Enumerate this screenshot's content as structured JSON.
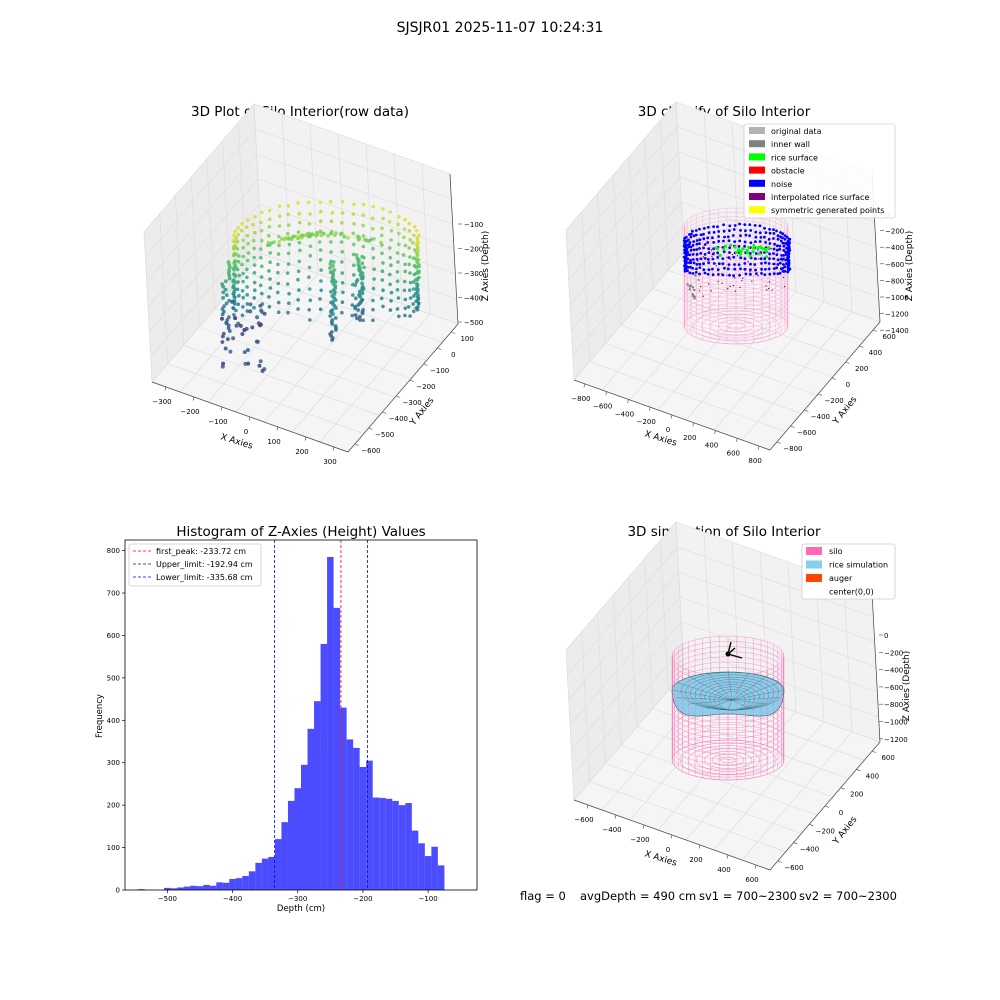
{
  "figure": {
    "suptitle": "SJSJR01 2025-11-07 10:24:31",
    "footer": {
      "flag": "flag = 0",
      "avg_depth": "avgDepth = 490 cm",
      "sv1": "sv1 = 700~2300",
      "sv2": "sv2 = 700~2300"
    }
  },
  "chart_data": [
    {
      "type": "scatter",
      "title": "3D Plot of Silo Interior(row data)",
      "xlabel": "X Axies",
      "ylabel": "Y Axies",
      "zlabel": "Z Axies (Depth)",
      "x_ticks": [
        "−300",
        "−200",
        "−100",
        "0",
        "100",
        "200",
        "300"
      ],
      "y_ticks": [
        "100",
        "0",
        "−100",
        "−200",
        "−300",
        "−400",
        "−500",
        "−600"
      ],
      "z_ticks": [
        "−100",
        "−200",
        "−300",
        "−400",
        "−500"
      ],
      "xlim": [
        -320,
        330
      ],
      "ylim": [
        -620,
        130
      ],
      "zlim": [
        -560,
        -40
      ],
      "colormap": "viridis"
    },
    {
      "type": "scatter",
      "title": "3D classify of Silo Interior",
      "xlabel": "X Axies",
      "ylabel": "Y Axies",
      "zlabel": "Z Axies (Depth)",
      "x_ticks": [
        "−800",
        "−600",
        "−400",
        "−200",
        "0",
        "200",
        "400",
        "600",
        "800"
      ],
      "y_ticks": [
        "600",
        "400",
        "200",
        "0",
        "−200",
        "−400",
        "−600",
        "−800"
      ],
      "z_ticks": [
        "0",
        "−200",
        "−400",
        "−600",
        "−800",
        "−1000",
        "−1200",
        "−1400"
      ],
      "legend_position": "upper-right",
      "legend": [
        {
          "name": "original data",
          "color": "#b3b3b3"
        },
        {
          "name": "inner wall",
          "color": "#808080"
        },
        {
          "name": "rice surface",
          "color": "#00ff00"
        },
        {
          "name": "obstacle",
          "color": "#ff0000"
        },
        {
          "name": "noise",
          "color": "#0000ff"
        },
        {
          "name": "interpolated rice surface",
          "color": "#800080"
        },
        {
          "name": "symmetric generated points",
          "color": "#ffff00"
        }
      ]
    },
    {
      "type": "bar",
      "title": "Histogram of Z-Axies (Height) Values",
      "xlabel": "Depth (cm)",
      "ylabel": "Frequency",
      "xlim": [
        -565,
        -25
      ],
      "ylim": [
        0,
        825
      ],
      "x_ticks": [
        -500,
        -400,
        -300,
        -200,
        -100
      ],
      "y_ticks": [
        0,
        100,
        200,
        300,
        400,
        500,
        600,
        700,
        800
      ],
      "bar_color": "#0000ff",
      "bin_start": -545,
      "bin_width": 10,
      "values": [
        2,
        0,
        0,
        0,
        5,
        4,
        6,
        8,
        10,
        9,
        12,
        10,
        18,
        17,
        26,
        28,
        33,
        44,
        64,
        74,
        78,
        120,
        160,
        210,
        240,
        295,
        380,
        445,
        580,
        785,
        665,
        430,
        355,
        335,
        290,
        305,
        218,
        217,
        215,
        210,
        200,
        205,
        140,
        110,
        80,
        102,
        58
      ],
      "lines": [
        {
          "label": "first_peak: -233.72 cm",
          "x": -233.72,
          "color": "#ff0000"
        },
        {
          "label": "Upper_limit: -192.94 cm",
          "x": -192.94,
          "color": "#0000ff"
        },
        {
          "label": "Lower_limit: -335.68 cm",
          "x": -335.68,
          "color": "#0000ff"
        }
      ],
      "legend_position": "upper-left"
    },
    {
      "type": "area",
      "title": "3D simulation of Silo Interior",
      "xlabel": "X Axies",
      "ylabel": "Y Axies",
      "zlabel": "Z Axies (Depth)",
      "x_ticks": [
        "−600",
        "−400",
        "−200",
        "0",
        "200",
        "400",
        "600"
      ],
      "y_ticks": [
        "600",
        "400",
        "200",
        "0",
        "−200",
        "−400",
        "−600"
      ],
      "z_ticks": [
        "0",
        "−200",
        "−400",
        "−600",
        "−800",
        "−1000",
        "−1200"
      ],
      "legend_position": "upper-right",
      "legend": [
        {
          "name": "silo",
          "color": "#ff69b4"
        },
        {
          "name": "rice simulation",
          "color": "#87ceeb"
        },
        {
          "name": "auger",
          "color": "#ff4500"
        },
        {
          "name": "center(0,0)",
          "color": "#ffffff"
        }
      ]
    }
  ]
}
